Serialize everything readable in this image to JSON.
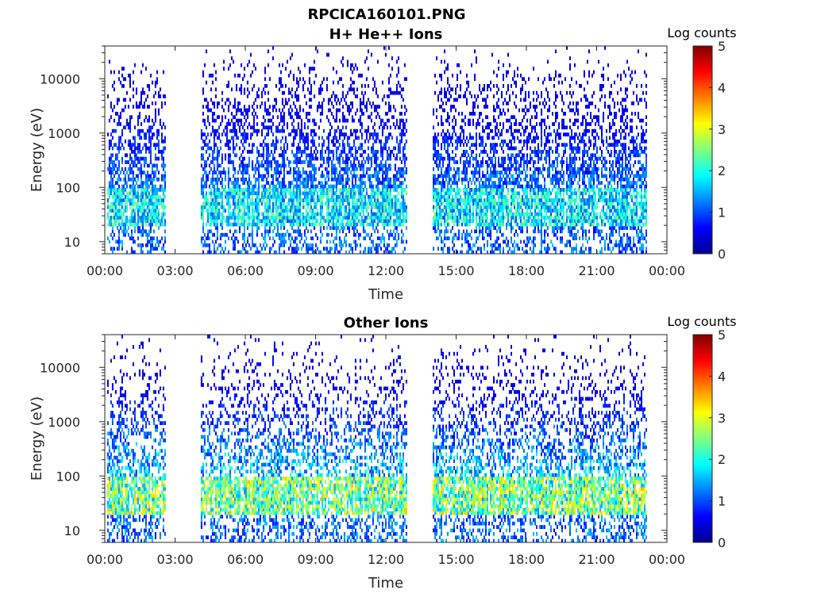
{
  "figure_title": "RPCICA160101.PNG",
  "chart_data": [
    {
      "type": "heatmap",
      "title": "H+ He++ Ions",
      "xlabel": "Time",
      "ylabel": "Energy (eV)",
      "x_tick_labels": [
        "00:00",
        "03:00",
        "06:00",
        "09:00",
        "12:00",
        "15:00",
        "18:00",
        "21:00",
        "00:00"
      ],
      "x_range_hours": [
        0,
        24
      ],
      "y_scale": "log",
      "y_ticks": [
        10,
        100,
        1000,
        10000
      ],
      "y_tick_labels": [
        "10",
        "100",
        "1000",
        "10000"
      ],
      "y_range": [
        6,
        40000
      ],
      "colorbar": {
        "label": "Log counts",
        "range": [
          0,
          5
        ],
        "ticks": [
          "0",
          "1",
          "2",
          "3",
          "4",
          "5"
        ],
        "colormap": "jet"
      },
      "data_intervals_hours": [
        [
          0.1,
          2.6
        ],
        [
          4.1,
          12.9
        ],
        [
          14.0,
          23.1
        ]
      ],
      "data_gaps_hours": [
        [
          2.6,
          4.1
        ],
        [
          12.9,
          14.0
        ]
      ],
      "peak_energy_eV": [
        20,
        100
      ],
      "typical_peak_log_counts": 2.2
    },
    {
      "type": "heatmap",
      "title": "Other Ions",
      "xlabel": "Time",
      "ylabel": "Energy (eV)",
      "x_tick_labels": [
        "00:00",
        "03:00",
        "06:00",
        "09:00",
        "12:00",
        "15:00",
        "18:00",
        "21:00",
        "00:00"
      ],
      "x_range_hours": [
        0,
        24
      ],
      "y_scale": "log",
      "y_ticks": [
        10,
        100,
        1000,
        10000
      ],
      "y_tick_labels": [
        "10",
        "100",
        "1000",
        "10000"
      ],
      "y_range": [
        6,
        40000
      ],
      "colorbar": {
        "label": "Log counts",
        "range": [
          0,
          5
        ],
        "ticks": [
          "0",
          "1",
          "2",
          "3",
          "4",
          "5"
        ],
        "colormap": "jet"
      },
      "data_intervals_hours": [
        [
          0.1,
          2.6
        ],
        [
          4.1,
          12.9
        ],
        [
          14.0,
          23.1
        ]
      ],
      "data_gaps_hours": [
        [
          2.6,
          4.1
        ],
        [
          12.9,
          14.0
        ]
      ],
      "peak_energy_eV": [
        20,
        100
      ],
      "typical_peak_log_counts": 3.0
    }
  ]
}
